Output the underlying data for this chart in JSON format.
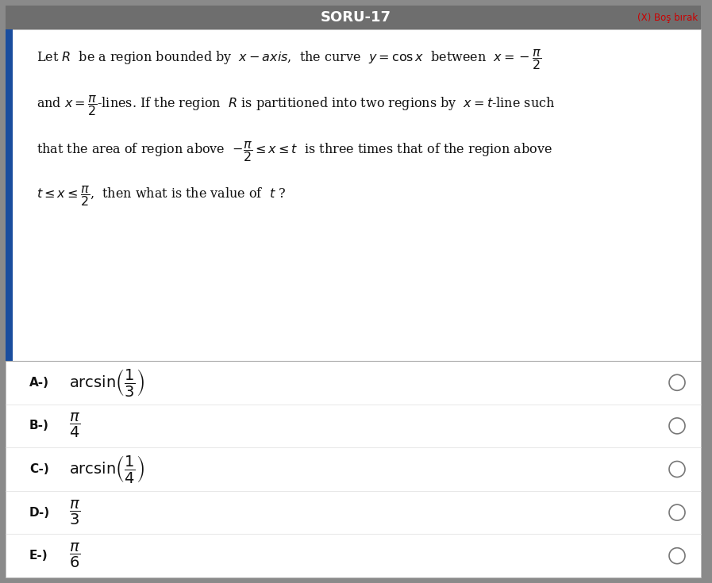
{
  "title": "SORU-17",
  "title_bg": "#6e6e6e",
  "title_color": "#ffffff",
  "skip_button_text": "(X) Boş bırak",
  "skip_button_color": "#cc0000",
  "outer_bg": "#8a8a8a",
  "content_bg": "#ffffff",
  "question_line1": "Let $R$  be a region bounded by  $x-axis$,  the curve  $y=\\cos x$  between  $x=-\\dfrac{\\pi}{2}$",
  "question_line2": "and $x=\\dfrac{\\pi}{2}$-lines. If the region  $R$ is partitioned into two regions by  $x=t$-line such",
  "question_line3": "that the area of region above  $-\\dfrac{\\pi}{2}\\leq x\\leq t$  is three times that of the region above",
  "question_line4": "$t\\leq x\\leq\\dfrac{\\pi}{2}$,  then what is the value of  $t$ ?",
  "choices": [
    {
      "label": "A-)",
      "math": "$\\mathrm{arcsin}\\left(\\dfrac{1}{3}\\right)$"
    },
    {
      "label": "B-)",
      "math": "$\\dfrac{\\pi}{4}$"
    },
    {
      "label": "C-)",
      "math": "$\\mathrm{arcsin}\\left(\\dfrac{1}{4}\\right)$"
    },
    {
      "label": "D-)",
      "math": "$\\dfrac{\\pi}{3}$"
    },
    {
      "label": "E-)",
      "math": "$\\dfrac{\\pi}{6}$"
    }
  ],
  "figsize": [
    8.97,
    7.35
  ],
  "dpi": 100
}
